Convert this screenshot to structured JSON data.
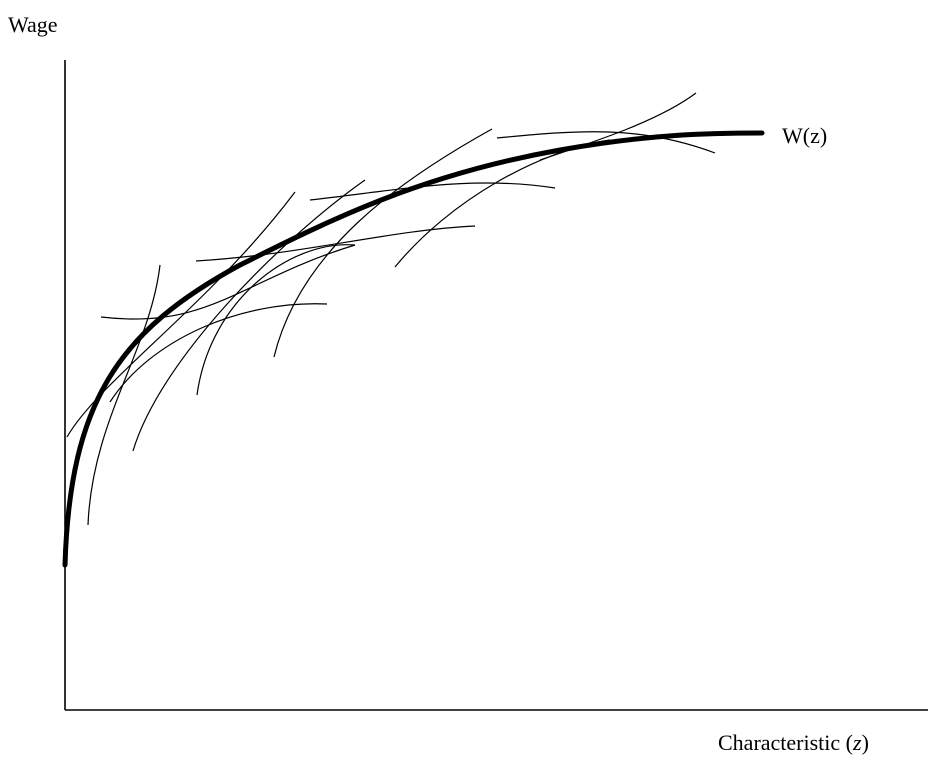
{
  "y_axis": {
    "label": "Wage"
  },
  "x_axis": {
    "label_main": "Characteristic (",
    "label_var": "z",
    "label_close": ")"
  },
  "curve": {
    "label": "W(z)",
    "color": "#000000"
  },
  "tangent_curves": [
    {
      "id": "offer-curve-1"
    },
    {
      "id": "offer-curve-2"
    },
    {
      "id": "offer-curve-3"
    },
    {
      "id": "offer-curve-4"
    },
    {
      "id": "offer-curve-5"
    },
    {
      "id": "offer-curve-6"
    },
    {
      "id": "offer-curve-7"
    },
    {
      "id": "offer-curve-8"
    },
    {
      "id": "offer-curve-9"
    },
    {
      "id": "offer-curve-10"
    },
    {
      "id": "offer-curve-11"
    },
    {
      "id": "offer-curve-12"
    },
    {
      "id": "offer-curve-13"
    },
    {
      "id": "offer-curve-14"
    }
  ]
}
